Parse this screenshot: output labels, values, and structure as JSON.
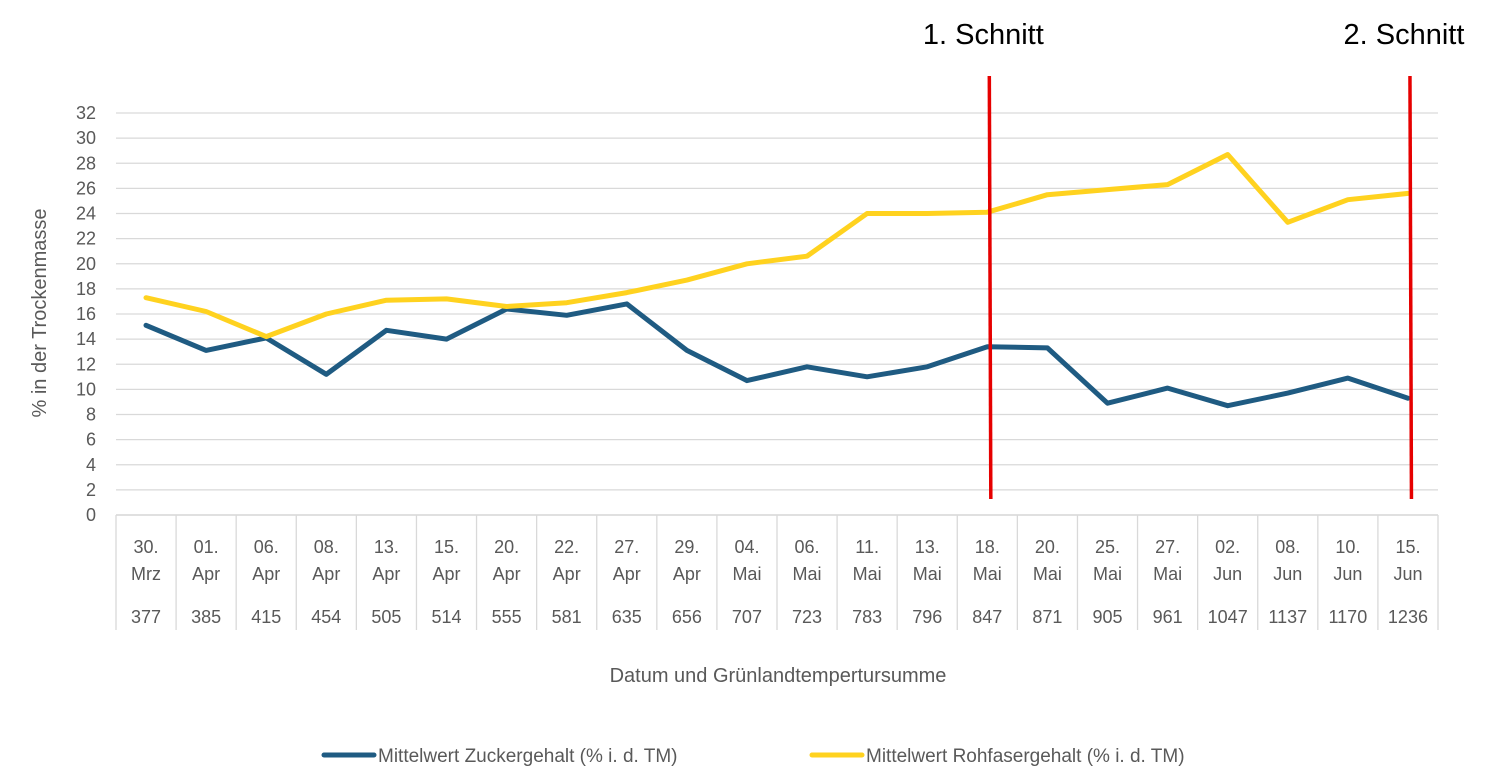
{
  "chart_data": {
    "type": "line",
    "title": "",
    "xlabel": "Datum und Grünlandtempertursumme",
    "ylabel": "% in der Trockenmasse",
    "ylim": [
      0,
      32
    ],
    "yticks": [
      0,
      2,
      4,
      6,
      8,
      10,
      12,
      14,
      16,
      18,
      20,
      22,
      24,
      26,
      28,
      30,
      32
    ],
    "grid": true,
    "legend_position": "bottom",
    "categories": [
      {
        "date_day": "30.",
        "date_month": "Mrz",
        "gts": "377"
      },
      {
        "date_day": "01.",
        "date_month": "Apr",
        "gts": "385"
      },
      {
        "date_day": "06.",
        "date_month": "Apr",
        "gts": "415"
      },
      {
        "date_day": "08.",
        "date_month": "Apr",
        "gts": "454"
      },
      {
        "date_day": "13.",
        "date_month": "Apr",
        "gts": "505"
      },
      {
        "date_day": "15.",
        "date_month": "Apr",
        "gts": "514"
      },
      {
        "date_day": "20.",
        "date_month": "Apr",
        "gts": "555"
      },
      {
        "date_day": "22.",
        "date_month": "Apr",
        "gts": "581"
      },
      {
        "date_day": "27.",
        "date_month": "Apr",
        "gts": "635"
      },
      {
        "date_day": "29.",
        "date_month": "Apr",
        "gts": "656"
      },
      {
        "date_day": "04.",
        "date_month": "Mai",
        "gts": "707"
      },
      {
        "date_day": "06.",
        "date_month": "Mai",
        "gts": "723"
      },
      {
        "date_day": "11.",
        "date_month": "Mai",
        "gts": "783"
      },
      {
        "date_day": "13.",
        "date_month": "Mai",
        "gts": "796"
      },
      {
        "date_day": "18.",
        "date_month": "Mai",
        "gts": "847"
      },
      {
        "date_day": "20.",
        "date_month": "Mai",
        "gts": "871"
      },
      {
        "date_day": "25.",
        "date_month": "Mai",
        "gts": "905"
      },
      {
        "date_day": "27.",
        "date_month": "Mai",
        "gts": "961"
      },
      {
        "date_day": "02.",
        "date_month": "Jun",
        "gts": "1047"
      },
      {
        "date_day": "08.",
        "date_month": "Jun",
        "gts": "1137"
      },
      {
        "date_day": "10.",
        "date_month": "Jun",
        "gts": "1170"
      },
      {
        "date_day": "15.",
        "date_month": "Jun",
        "gts": "1236"
      }
    ],
    "series": [
      {
        "name": "Mittelwert Zuckergehalt (% i. d. TM)",
        "color": "#1f5b82",
        "values": [
          15.1,
          13.1,
          14.1,
          11.2,
          14.7,
          14.0,
          16.4,
          15.9,
          16.8,
          13.1,
          10.7,
          11.8,
          11.0,
          11.8,
          13.4,
          13.3,
          8.9,
          10.1,
          8.7,
          9.7,
          10.9,
          9.3
        ]
      },
      {
        "name": "Mittelwert Rohfasergehalt (% i. d. TM)",
        "color": "#ffd21f",
        "values": [
          17.3,
          16.2,
          14.2,
          16.0,
          17.1,
          17.2,
          16.6,
          16.9,
          17.7,
          18.7,
          20.0,
          20.6,
          24.0,
          24.0,
          24.1,
          25.5,
          25.9,
          26.3,
          28.7,
          23.3,
          25.1,
          25.6
        ]
      }
    ],
    "markers": [
      {
        "label": "1. Schnitt",
        "at_category_index": 14,
        "color": "#e60000"
      },
      {
        "label": "2. Schnitt",
        "at_category_index": 21,
        "color": "#e60000"
      }
    ]
  }
}
